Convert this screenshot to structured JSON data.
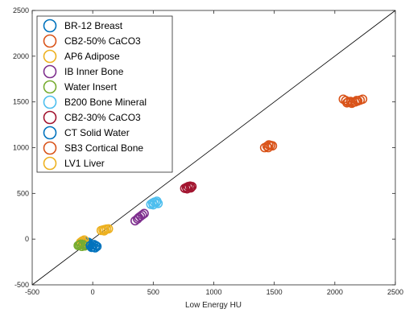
{
  "chart_data": {
    "type": "scatter",
    "title": "",
    "xlabel": "Low Energy HU",
    "ylabel": "",
    "xlim": [
      -500,
      2500
    ],
    "ylim": [
      -500,
      2500
    ],
    "xticks": [
      -500,
      0,
      500,
      1000,
      1500,
      2000,
      2500
    ],
    "yticks": [
      -500,
      0,
      500,
      1000,
      1500,
      2000,
      2500
    ],
    "grid": false,
    "legend_position": "top-left",
    "marker": "open-circle",
    "identity_line": true,
    "series": [
      {
        "name": "BR-12 Breast",
        "color": "#0072BD",
        "points": [
          [
            -60,
            -40
          ],
          [
            -50,
            -55
          ],
          [
            -40,
            -45
          ],
          [
            -30,
            -60
          ],
          [
            -55,
            -30
          ],
          [
            -35,
            -35
          ],
          [
            -45,
            -65
          ],
          [
            -65,
            -50
          ]
        ]
      },
      {
        "name": "CB2-50% CaCO3",
        "color": "#D95319",
        "points": [
          [
            2070,
            1530
          ],
          [
            2090,
            1515
          ],
          [
            2110,
            1500
          ],
          [
            2130,
            1505
          ],
          [
            2150,
            1495
          ],
          [
            2170,
            1500
          ],
          [
            2190,
            1510
          ],
          [
            2210,
            1520
          ],
          [
            2230,
            1530
          ],
          [
            2100,
            1490
          ],
          [
            2140,
            1485
          ],
          [
            2180,
            1515
          ]
        ]
      },
      {
        "name": "AP6 Adipose",
        "color": "#EDB120",
        "points": [
          [
            -100,
            -35
          ],
          [
            -85,
            -20
          ],
          [
            -70,
            -10
          ],
          [
            -90,
            -25
          ],
          [
            -75,
            -40
          ]
        ]
      },
      {
        "name": "IB Inner Bone",
        "color": "#7E2F8E",
        "points": [
          [
            350,
            200
          ],
          [
            370,
            220
          ],
          [
            380,
            235
          ],
          [
            395,
            250
          ],
          [
            410,
            265
          ],
          [
            425,
            280
          ]
        ]
      },
      {
        "name": "Water Insert",
        "color": "#77AC30",
        "points": [
          [
            -120,
            -70
          ],
          [
            -100,
            -55
          ],
          [
            -90,
            -80
          ],
          [
            -80,
            -60
          ],
          [
            -65,
            -75
          ],
          [
            -110,
            -65
          ]
        ]
      },
      {
        "name": "B200 Bone Mineral",
        "color": "#4DBEEE",
        "points": [
          [
            480,
            380
          ],
          [
            495,
            395
          ],
          [
            510,
            405
          ],
          [
            525,
            400
          ],
          [
            540,
            390
          ],
          [
            500,
            375
          ],
          [
            530,
            415
          ]
        ]
      },
      {
        "name": "CB2-30% CaCO3",
        "color": "#A2142F",
        "points": [
          [
            760,
            555
          ],
          [
            775,
            565
          ],
          [
            790,
            575
          ],
          [
            805,
            580
          ],
          [
            820,
            575
          ],
          [
            780,
            550
          ],
          [
            810,
            560
          ]
        ]
      },
      {
        "name": "CT Solid Water",
        "color": "#0072BD",
        "points": [
          [
            -20,
            -70
          ],
          [
            0,
            -85
          ],
          [
            20,
            -95
          ],
          [
            35,
            -80
          ],
          [
            10,
            -60
          ],
          [
            -10,
            -90
          ],
          [
            25,
            -70
          ]
        ]
      },
      {
        "name": "SB3 Cortical Bone",
        "color": "#D95319",
        "points": [
          [
            1420,
            1000
          ],
          [
            1440,
            1015
          ],
          [
            1455,
            1030
          ],
          [
            1470,
            1025
          ],
          [
            1485,
            1020
          ],
          [
            1450,
            1000
          ]
        ]
      },
      {
        "name": "LV1 Liver",
        "color": "#EDB120",
        "points": [
          [
            70,
            95
          ],
          [
            85,
            100
          ],
          [
            100,
            105
          ],
          [
            115,
            110
          ],
          [
            130,
            112
          ],
          [
            95,
            90
          ]
        ]
      }
    ]
  }
}
